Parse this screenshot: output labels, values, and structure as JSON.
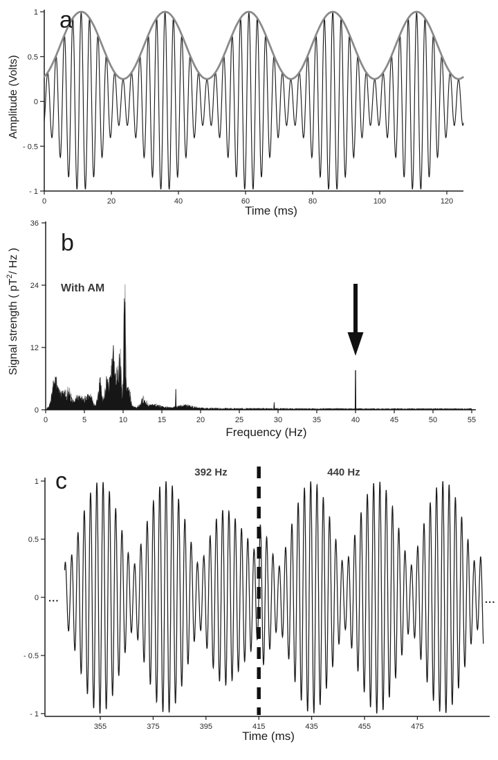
{
  "chart_data": [
    {
      "type": "line",
      "panel_label": "a",
      "xlabel": "Time (ms)",
      "ylabel": "Amplitude (Volts)",
      "xlim": [
        0,
        125
      ],
      "ylim": [
        -1,
        1
      ],
      "xticks": [
        0,
        20,
        40,
        60,
        80,
        100,
        120
      ],
      "yticks": [
        1,
        0.5,
        0,
        -0.5,
        -1
      ],
      "ytick_labels": [
        "1",
        "0.5",
        "0",
        "- 0.5",
        "- 1"
      ],
      "signal": {
        "description": "sine carrier with sinusoidal amplitude modulation, gray upper envelope drawn",
        "carrier_cycles_per_ms": 0.4,
        "mod_period_ms": 25,
        "mod_peak_ms": 11,
        "envelope_max": 1,
        "envelope_min": 0.25,
        "envelope_color": "#8a8a8a",
        "trace_color": "#1a1a1a"
      }
    },
    {
      "type": "area",
      "panel_label": "b",
      "xlabel": "Frequency (Hz)",
      "ylabel_parts": [
        "Signal strength ( pT",
        "2",
        "/ Hz )"
      ],
      "annotation": "With AM",
      "xlim": [
        0,
        55
      ],
      "ylim": [
        0,
        36
      ],
      "xticks": [
        0,
        5,
        10,
        15,
        20,
        25,
        30,
        35,
        40,
        45,
        50,
        55
      ],
      "yticks": [
        0,
        12,
        24,
        36
      ],
      "arrow_hz": 40,
      "spectrum": {
        "noise_seed": 13,
        "gray_seed": 101,
        "noise_floor": 0.5,
        "bumps": [
          {
            "hz": 1.2,
            "width": 0.45,
            "height": 5.5
          },
          {
            "hz": 2.0,
            "width": 0.7,
            "height": 2.8
          },
          {
            "hz": 2.9,
            "width": 0.5,
            "height": 3.2
          },
          {
            "hz": 4.3,
            "width": 0.8,
            "height": 2.4
          },
          {
            "hz": 5.6,
            "width": 0.6,
            "height": 2.6
          },
          {
            "hz": 7.0,
            "width": 0.3,
            "height": 6.5
          },
          {
            "hz": 7.9,
            "width": 0.35,
            "height": 7.0
          },
          {
            "hz": 8.8,
            "width": 0.5,
            "height": 13.0
          },
          {
            "hz": 9.6,
            "width": 0.3,
            "height": 10.0
          },
          {
            "hz": 10.2,
            "width": 0.16,
            "height": 24.0
          },
          {
            "hz": 10.7,
            "width": 0.35,
            "height": 5.0
          },
          {
            "hz": 12.6,
            "width": 0.5,
            "height": 2.0
          },
          {
            "hz": 14.0,
            "width": 1.2,
            "height": 0.8
          },
          {
            "hz": 18.0,
            "width": 1.5,
            "height": 0.7
          }
        ],
        "spikes": [
          {
            "hz": 16.8,
            "height": 4.2
          },
          {
            "hz": 29.5,
            "height": 1.5
          },
          {
            "hz": 40.0,
            "height": 7.6
          }
        ]
      }
    },
    {
      "type": "line",
      "panel_label": "c",
      "xlabel": "Time (ms)",
      "xlim": [
        334,
        502
      ],
      "ylim": [
        -1,
        1
      ],
      "xticks": [
        355,
        375,
        395,
        415,
        435,
        455,
        475
      ],
      "yticks": [
        1,
        0.5,
        0,
        -0.5,
        -1
      ],
      "ytick_labels": [
        "1",
        "0.5",
        "0",
        "- 0.5",
        "- 1"
      ],
      "segment_labels": [
        "392 Hz",
        "440 Hz"
      ],
      "boundary_ms": 415,
      "ellipsis": "...",
      "signal": {
        "description": "beating tone, 392 Hz before dashed boundary, 440 Hz after",
        "carrier_cycles_per_ms": 0.42,
        "beat_period_ms": 25,
        "left_env_peak_ms": 355,
        "right_env_peak_ms": 435,
        "env_min": 0.27,
        "env_max": 1,
        "t_start": 341.5,
        "t_end": 500,
        "trace_color": "#1a1a1a"
      }
    }
  ]
}
